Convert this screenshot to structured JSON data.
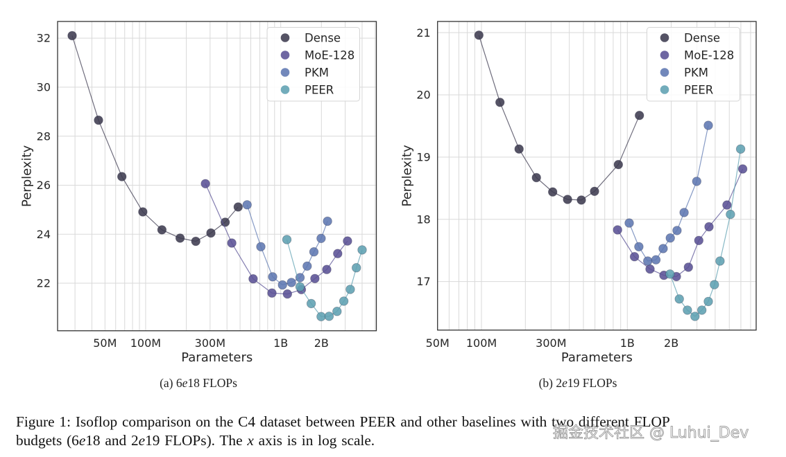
{
  "figure": {
    "subcaptions": [
      {
        "prefix": "(a) 6",
        "italic": "e",
        "suffix": "18 FLOPs"
      },
      {
        "prefix": "(b) 2",
        "italic": "e",
        "suffix": "19 FLOPs"
      }
    ],
    "caption": {
      "line1": "Figure 1: Isoflop comparison on the C4 dataset between PEER and other baselines with two different FLOP",
      "line2_parts": [
        "budgets (6",
        "e",
        "18 and 2",
        "e",
        "19 FLOPs). The ",
        "x",
        " axis is in log scale."
      ]
    },
    "watermark": "掘金技术社区 @ Luhui_Dev"
  },
  "chart_data": [
    {
      "type": "line",
      "title": "(a) 6e18 FLOPs",
      "xlabel": "Parameters",
      "ylabel": "Perplexity",
      "xscale": "log",
      "xlim": [
        22300000,
        5100000000
      ],
      "ylim": [
        20.06,
        32.68
      ],
      "xticks": [
        50000000,
        100000000,
        300000000,
        1000000000,
        2000000000
      ],
      "xticklabels": [
        "50M",
        "100M",
        "300M",
        "1B",
        "2B"
      ],
      "yticks": [
        22,
        24,
        26,
        28,
        30,
        32
      ],
      "yticklabels": [
        "22",
        "24",
        "26",
        "28",
        "30",
        "32"
      ],
      "grid": true,
      "legend": "top-right",
      "series": [
        {
          "name": "Dense",
          "color": "#3d3b50",
          "x": [
            28600000,
            44800000,
            66700000,
            95400000,
            132000000,
            180000000,
            235000000,
            304000000,
            388000000,
            484000000
          ],
          "y": [
            32.1,
            28.65,
            26.35,
            24.91,
            24.18,
            23.84,
            23.71,
            24.05,
            24.49,
            25.11
          ]
        },
        {
          "name": "MoE-128",
          "color": "#5a5195",
          "x": [
            277000000,
            434000000,
            625000000,
            861000000,
            1120000000,
            1420000000,
            1790000000,
            2190000000,
            2640000000,
            3120000000
          ],
          "y": [
            26.06,
            23.64,
            22.18,
            21.6,
            21.56,
            21.74,
            22.19,
            22.56,
            23.21,
            23.72
          ]
        },
        {
          "name": "PKM",
          "color": "#5e78b2",
          "x": [
            564000000,
            712000000,
            871000000,
            1030000000,
            1200000000,
            1390000000,
            1570000000,
            1760000000,
            1990000000,
            2220000000
          ],
          "y": [
            25.2,
            23.49,
            22.26,
            21.93,
            22.03,
            22.23,
            22.7,
            23.28,
            23.83,
            24.53
          ]
        },
        {
          "name": "PEER",
          "color": "#5ea0b2",
          "x": [
            1110000000,
            1390000000,
            1680000000,
            1990000000,
            2280000000,
            2610000000,
            2930000000,
            3270000000,
            3630000000,
            4000000000
          ],
          "y": [
            23.78,
            21.85,
            21.17,
            20.64,
            20.65,
            20.85,
            21.27,
            21.75,
            22.63,
            23.36
          ]
        }
      ]
    },
    {
      "type": "line",
      "title": "(b) 2e19 FLOPs",
      "xlabel": "Parameters",
      "ylabel": "Perplexity",
      "xscale": "log",
      "xlim": [
        50000000,
        7640000000
      ],
      "ylim": [
        16.22,
        21.18
      ],
      "xticks": [
        50000000,
        100000000,
        300000000,
        1000000000,
        2000000000
      ],
      "xticklabels": [
        "50M",
        "100M",
        "300M",
        "1B",
        "2B"
      ],
      "yticks": [
        17,
        18,
        19,
        20,
        21
      ],
      "yticklabels": [
        "17",
        "18",
        "19",
        "20",
        "21"
      ],
      "grid": true,
      "legend": "top-right",
      "series": [
        {
          "name": "Dense",
          "color": "#3d3b50",
          "x": [
            96000000,
            134000000,
            181000000,
            238000000,
            308000000,
            389000000,
            484000000,
            596000000,
            867000000,
            1210000000
          ],
          "y": [
            20.96,
            19.88,
            19.13,
            18.67,
            18.44,
            18.32,
            18.31,
            18.45,
            18.88,
            19.67
          ]
        },
        {
          "name": "MoE-128",
          "color": "#5a5195",
          "x": [
            857000000,
            1120000000,
            1430000000,
            1780000000,
            2170000000,
            2620000000,
            3090000000,
            3630000000,
            4820000000,
            6180000000
          ],
          "y": [
            17.83,
            17.4,
            17.2,
            17.1,
            17.08,
            17.23,
            17.66,
            17.88,
            18.23,
            18.81
          ]
        },
        {
          "name": "PKM",
          "color": "#5e78b2",
          "x": [
            1030000000,
            1200000000,
            1380000000,
            1570000000,
            1760000000,
            1970000000,
            2190000000,
            2450000000,
            2990000000,
            3590000000
          ],
          "y": [
            17.94,
            17.56,
            17.33,
            17.35,
            17.53,
            17.7,
            17.82,
            18.11,
            18.61,
            19.51
          ]
        },
        {
          "name": "PEER",
          "color": "#5ea0b2",
          "x": [
            1960000000,
            2270000000,
            2580000000,
            2910000000,
            3240000000,
            3590000000,
            3950000000,
            4320000000,
            5090000000,
            5980000000
          ],
          "y": [
            17.12,
            16.72,
            16.54,
            16.44,
            16.54,
            16.68,
            16.95,
            17.33,
            18.08,
            19.13
          ]
        }
      ]
    }
  ]
}
